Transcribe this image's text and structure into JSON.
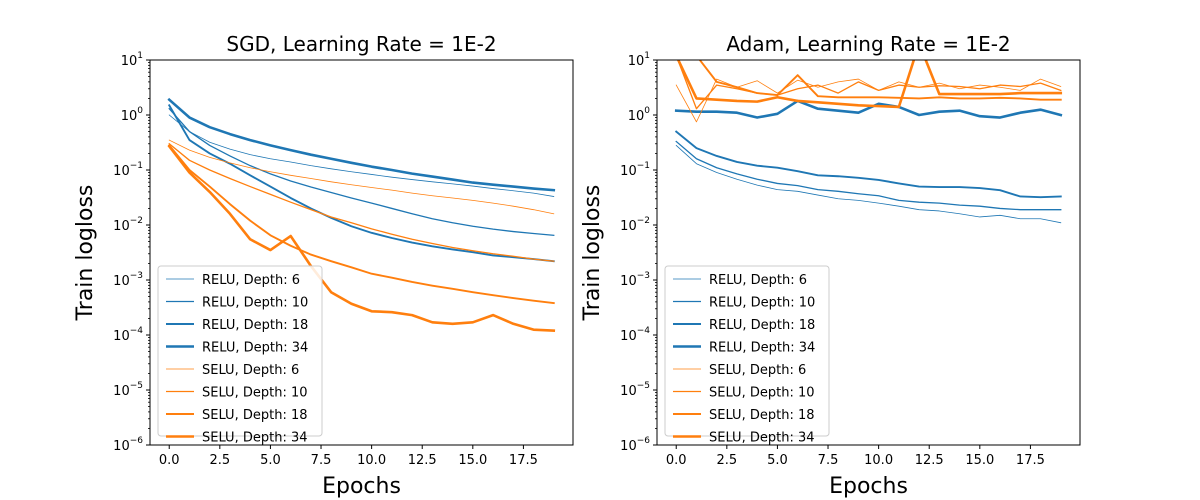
{
  "chart_data": [
    {
      "type": "line",
      "title": "SGD, Learning Rate = 1E-2",
      "xlabel": "Epochs",
      "ylabel": "Train logloss",
      "xlim": [
        -0.95,
        19.95
      ],
      "ylim": [
        1e-06,
        10
      ],
      "yscale": "log",
      "xticks": [
        "0.0",
        "2.5",
        "5.0",
        "7.5",
        "10.0",
        "12.5",
        "15.0",
        "17.5"
      ],
      "yticks": [
        {
          "base": "10",
          "exp": "1"
        },
        {
          "base": "10",
          "exp": "0"
        },
        {
          "base": "10",
          "exp": "−1"
        },
        {
          "base": "10",
          "exp": "−2"
        },
        {
          "base": "10",
          "exp": "−3"
        },
        {
          "base": "10",
          "exp": "−4"
        },
        {
          "base": "10",
          "exp": "−5"
        },
        {
          "base": "10",
          "exp": "−6"
        }
      ],
      "grid": false,
      "legend_position": "lower-left",
      "x": [
        0,
        1,
        2,
        3,
        4,
        5,
        6,
        7,
        8,
        9,
        10,
        11,
        12,
        13,
        14,
        15,
        16,
        17,
        18,
        19
      ],
      "series": [
        {
          "name": "RELU, Depth: 6",
          "color": "#1f77b4",
          "linewidth": 0.8,
          "values": [
            1.0,
            0.5,
            0.32,
            0.24,
            0.19,
            0.16,
            0.14,
            0.12,
            0.105,
            0.093,
            0.083,
            0.074,
            0.067,
            0.061,
            0.056,
            0.051,
            0.046,
            0.042,
            0.038,
            0.033
          ]
        },
        {
          "name": "RELU, Depth: 10",
          "color": "#1f77b4",
          "linewidth": 1.3,
          "values": [
            1.3,
            0.5,
            0.28,
            0.18,
            0.12,
            0.085,
            0.063,
            0.049,
            0.039,
            0.031,
            0.025,
            0.02,
            0.016,
            0.013,
            0.011,
            0.0095,
            0.0084,
            0.0076,
            0.007,
            0.0065
          ]
        },
        {
          "name": "RELU, Depth: 18",
          "color": "#1f77b4",
          "linewidth": 1.9,
          "values": [
            1.5,
            0.35,
            0.2,
            0.13,
            0.08,
            0.05,
            0.031,
            0.02,
            0.0135,
            0.0095,
            0.0072,
            0.0058,
            0.0048,
            0.0041,
            0.0036,
            0.0032,
            0.0028,
            0.0026,
            0.0024,
            0.0022
          ]
        },
        {
          "name": "RELU, Depth: 34",
          "color": "#1f77b4",
          "linewidth": 2.6,
          "values": [
            1.9,
            0.9,
            0.6,
            0.45,
            0.35,
            0.28,
            0.23,
            0.19,
            0.16,
            0.135,
            0.115,
            0.1,
            0.086,
            0.076,
            0.067,
            0.059,
            0.054,
            0.05,
            0.046,
            0.043
          ]
        },
        {
          "name": "SELU, Depth: 6",
          "color": "#ff7f0e",
          "linewidth": 0.8,
          "values": [
            0.35,
            0.23,
            0.17,
            0.135,
            0.11,
            0.093,
            0.08,
            0.07,
            0.061,
            0.054,
            0.048,
            0.043,
            0.038,
            0.034,
            0.031,
            0.028,
            0.025,
            0.022,
            0.019,
            0.016
          ]
        },
        {
          "name": "SELU, Depth: 10",
          "color": "#ff7f0e",
          "linewidth": 1.3,
          "values": [
            0.3,
            0.15,
            0.1,
            0.07,
            0.05,
            0.036,
            0.026,
            0.019,
            0.014,
            0.011,
            0.0085,
            0.0068,
            0.0055,
            0.0046,
            0.0039,
            0.0034,
            0.003,
            0.0027,
            0.0024,
            0.0022
          ]
        },
        {
          "name": "SELU, Depth: 18",
          "color": "#ff7f0e",
          "linewidth": 1.9,
          "values": [
            0.28,
            0.1,
            0.05,
            0.024,
            0.012,
            0.0065,
            0.0042,
            0.0029,
            0.0022,
            0.0017,
            0.0013,
            0.0011,
            0.00092,
            0.00079,
            0.00069,
            0.0006,
            0.00053,
            0.00047,
            0.00042,
            0.00038
          ]
        },
        {
          "name": "SELU, Depth: 34",
          "color": "#ff7f0e",
          "linewidth": 2.6,
          "values": [
            0.27,
            0.09,
            0.04,
            0.016,
            0.0055,
            0.0035,
            0.0063,
            0.0018,
            0.0006,
            0.00037,
            0.00027,
            0.00026,
            0.00023,
            0.00017,
            0.00016,
            0.00017,
            0.00023,
            0.00016,
            0.000125,
            0.00012
          ]
        }
      ]
    },
    {
      "type": "line",
      "title": "Adam, Learning Rate = 1E-2",
      "xlabel": "Epochs",
      "ylabel": "Train logloss",
      "xlim": [
        -0.95,
        19.95
      ],
      "ylim": [
        1e-06,
        10
      ],
      "yscale": "log",
      "xticks": [
        "0.0",
        "2.5",
        "5.0",
        "7.5",
        "10.0",
        "12.5",
        "15.0",
        "17.5"
      ],
      "yticks": [
        {
          "base": "10",
          "exp": "1"
        },
        {
          "base": "10",
          "exp": "0"
        },
        {
          "base": "10",
          "exp": "−1"
        },
        {
          "base": "10",
          "exp": "−2"
        },
        {
          "base": "10",
          "exp": "−3"
        },
        {
          "base": "10",
          "exp": "−4"
        },
        {
          "base": "10",
          "exp": "−5"
        },
        {
          "base": "10",
          "exp": "−6"
        }
      ],
      "grid": false,
      "legend_position": "lower-left",
      "x": [
        0,
        1,
        2,
        3,
        4,
        5,
        6,
        7,
        8,
        9,
        10,
        11,
        12,
        13,
        14,
        15,
        16,
        17,
        18,
        19
      ],
      "series": [
        {
          "name": "RELU, Depth: 6",
          "color": "#1f77b4",
          "linewidth": 0.8,
          "values": [
            0.28,
            0.13,
            0.09,
            0.068,
            0.053,
            0.044,
            0.041,
            0.035,
            0.03,
            0.028,
            0.025,
            0.022,
            0.019,
            0.018,
            0.016,
            0.014,
            0.015,
            0.013,
            0.013,
            0.011
          ]
        },
        {
          "name": "RELU, Depth: 10",
          "color": "#1f77b4",
          "linewidth": 1.3,
          "values": [
            0.33,
            0.16,
            0.11,
            0.085,
            0.068,
            0.057,
            0.052,
            0.044,
            0.041,
            0.037,
            0.034,
            0.028,
            0.026,
            0.025,
            0.023,
            0.022,
            0.02,
            0.019,
            0.019,
            0.019
          ]
        },
        {
          "name": "RELU, Depth: 18",
          "color": "#1f77b4",
          "linewidth": 1.9,
          "values": [
            0.5,
            0.25,
            0.18,
            0.14,
            0.12,
            0.11,
            0.095,
            0.08,
            0.077,
            0.072,
            0.066,
            0.057,
            0.05,
            0.049,
            0.049,
            0.047,
            0.043,
            0.033,
            0.032,
            0.033
          ]
        },
        {
          "name": "RELU, Depth: 34",
          "color": "#1f77b4",
          "linewidth": 2.6,
          "values": [
            1.2,
            1.15,
            1.15,
            1.1,
            0.9,
            1.05,
            1.8,
            1.3,
            1.2,
            1.1,
            1.6,
            1.4,
            1.0,
            1.15,
            1.2,
            0.95,
            0.9,
            1.1,
            1.25,
            1.0
          ]
        },
        {
          "name": "SELU, Depth: 6",
          "color": "#ff7f0e",
          "linewidth": 0.8,
          "values": [
            3.5,
            0.75,
            4.5,
            3.2,
            4.2,
            2.5,
            4.3,
            3.2,
            4.0,
            4.5,
            2.8,
            4.0,
            3.2,
            3.8,
            3.0,
            3.5,
            3.2,
            2.8,
            4.5,
            3.3
          ]
        },
        {
          "name": "SELU, Depth: 10",
          "color": "#ff7f0e",
          "linewidth": 1.3,
          "values": [
            12,
            1.3,
            3.5,
            3.0,
            2.5,
            2.3,
            3.0,
            3.5,
            2.5,
            4.0,
            2.8,
            3.5,
            3.2,
            3.4,
            3.3,
            3.0,
            3.5,
            3.3,
            3.8,
            2.8
          ]
        },
        {
          "name": "SELU, Depth: 18",
          "color": "#ff7f0e",
          "linewidth": 1.9,
          "values": [
            12,
            12,
            4.0,
            3.2,
            2.5,
            2.3,
            5.3,
            2.2,
            2.1,
            2.1,
            2.1,
            2.05,
            2.0,
            2.1,
            2.0,
            2.0,
            2.05,
            2.0,
            1.9,
            1.9
          ]
        },
        {
          "name": "SELU, Depth: 34",
          "color": "#ff7f0e",
          "linewidth": 2.6,
          "values": [
            12,
            2.0,
            1.9,
            1.8,
            1.75,
            2.1,
            1.8,
            1.7,
            1.6,
            1.5,
            1.45,
            1.4,
            20,
            2.4,
            2.4,
            2.4,
            2.4,
            2.5,
            2.5,
            2.5
          ]
        }
      ]
    }
  ]
}
